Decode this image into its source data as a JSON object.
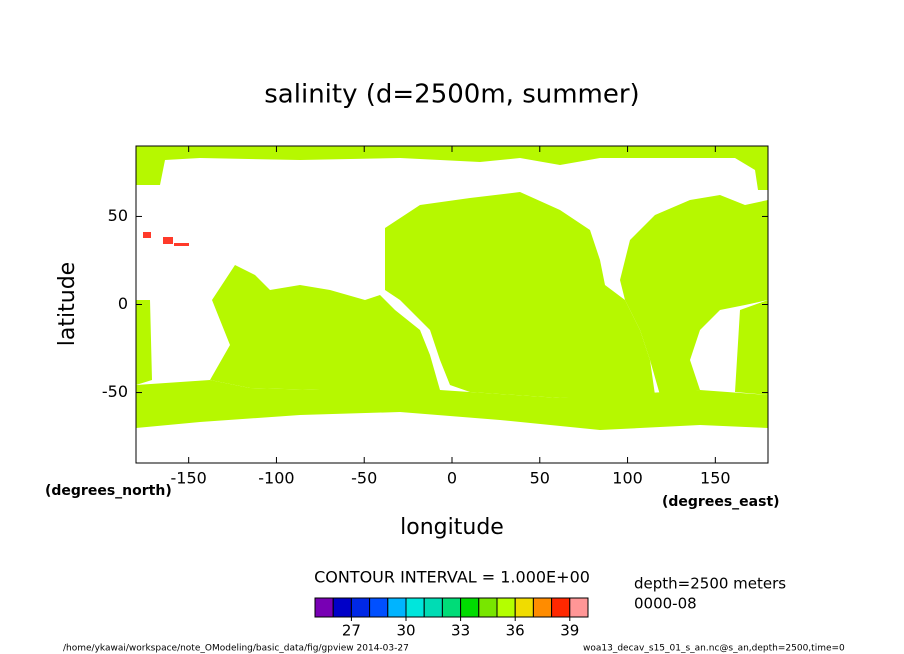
{
  "chart_data": {
    "type": "contour-map",
    "title": "salinity (d=2500m, summer)",
    "x_label": "longitude",
    "y_label": "latitude",
    "x_unit": "(degrees_east)",
    "y_unit": "(degrees_north)",
    "xlim": [
      -180,
      180
    ],
    "ylim": [
      -90,
      90
    ],
    "xticks": [
      -150,
      -100,
      -50,
      0,
      50,
      100,
      150
    ],
    "yticks": [
      -50,
      0,
      50
    ],
    "contour_interval": "CONTOUR INTERVAL = 1.000E+00",
    "colorbar": {
      "range": [
        25,
        40
      ],
      "colors": [
        "#7800b4",
        "#0000c8",
        "#0028e6",
        "#0050ff",
        "#00b4ff",
        "#00e6dc",
        "#00dcb4",
        "#00dc78",
        "#00dc00",
        "#78e600",
        "#b4ff00",
        "#f0dc00",
        "#ff8c00",
        "#ff2800",
        "#ff9696"
      ],
      "ticks": [
        27,
        30,
        33,
        36,
        39
      ]
    },
    "annotations": [
      "depth=2500 meters",
      "0000-08"
    ],
    "footer_left": "/home/ykawai/workspace/note_OModeling/basic_data/fig/gpview  2014-03-27",
    "footer_right": "woa13_decav_s15_01_s_an.nc@s_an,depth=2500,time=0"
  }
}
